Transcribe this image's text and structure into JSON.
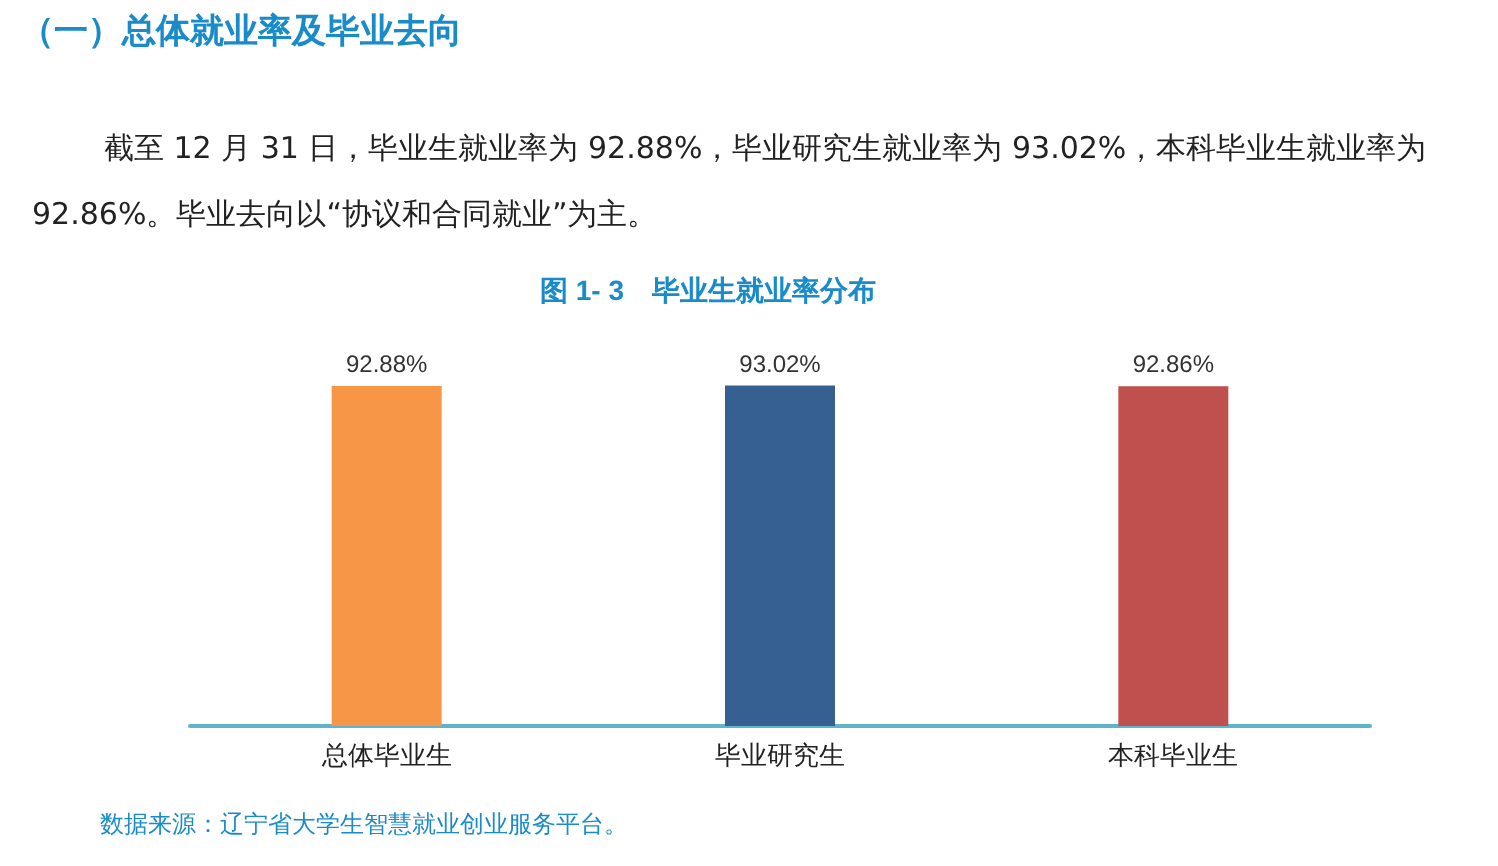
{
  "chart_data": {
    "type": "bar",
    "title": "图 1- 3　毕业生就业率分布",
    "subtitle": "（一）总体就业率及毕业去向",
    "annotations": [
      "截至 12 月 31 日，毕业生就业率为 92.88%，毕业研究生就业率为 93.02%，本科毕业生就业率为 92.86%。毕业去向以“协议和合同就业”为主。",
      "数据来源：辽宁省大学生智慧就业创业服务平台。"
    ],
    "categories": [
      "总体毕业生",
      "毕业研究生",
      "本科毕业生"
    ],
    "values": [
      92.88,
      93.02,
      92.86
    ],
    "value_labels": [
      "92.88%",
      "93.02%",
      "92.86%"
    ],
    "colors": [
      "#f79646",
      "#376092",
      "#c0504d"
    ]
  }
}
